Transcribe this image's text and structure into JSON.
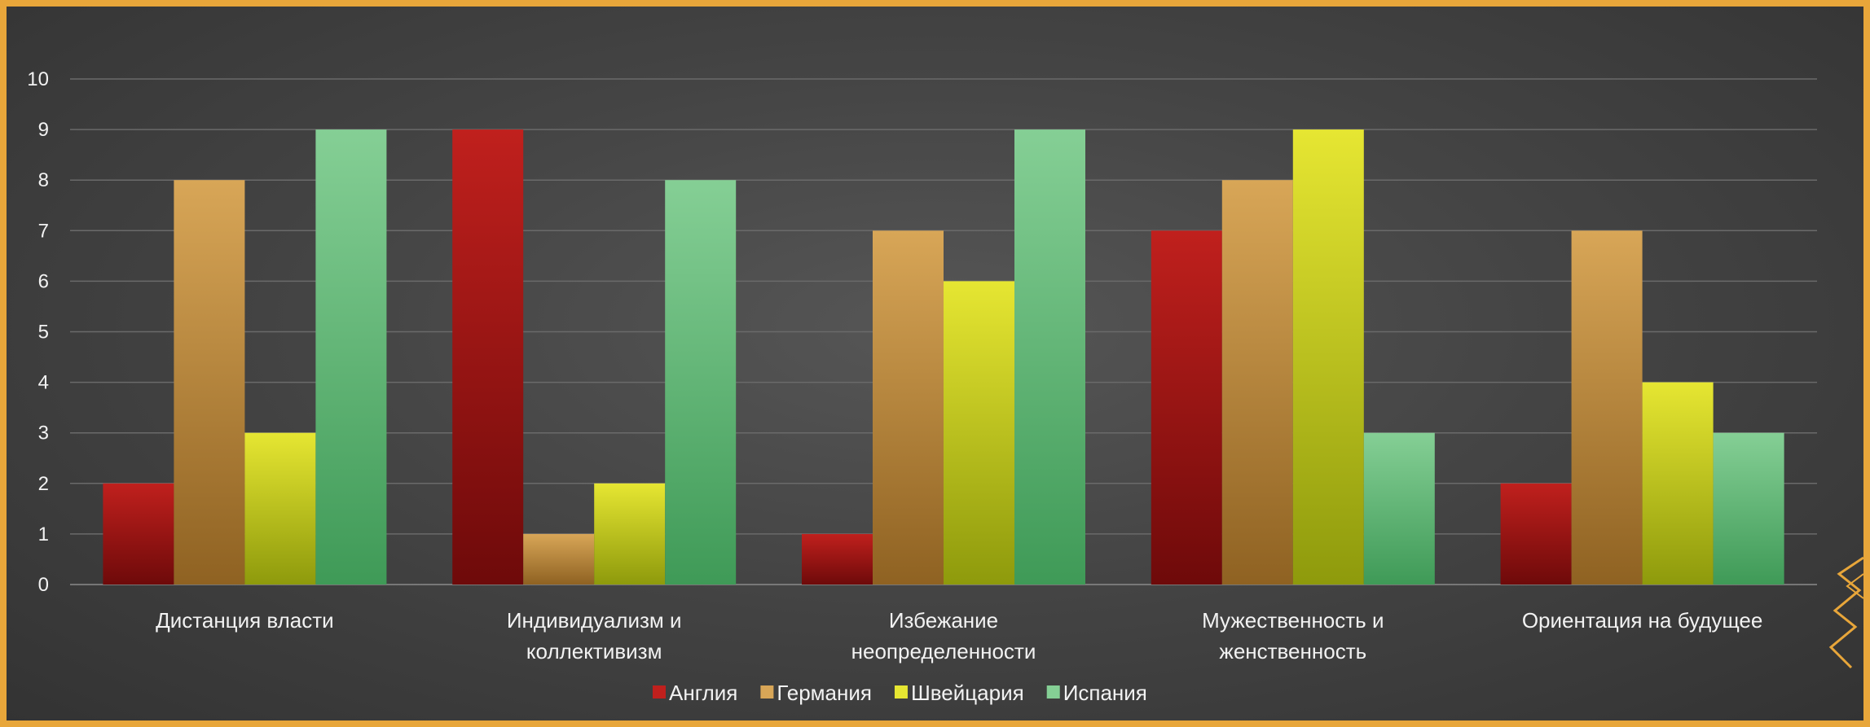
{
  "chart_data": {
    "type": "bar",
    "categories": [
      [
        "Дистанция власти"
      ],
      [
        "Индивидуализм и",
        "коллективизм"
      ],
      [
        "Избежание",
        "неопределенности"
      ],
      [
        "Мужественность и",
        "женственность"
      ],
      [
        "Ориентация на будущее"
      ]
    ],
    "series": [
      {
        "name": "Англия",
        "values": [
          2,
          9,
          1,
          7,
          2
        ],
        "color": "#c0201d",
        "color_dark": "#6e0a0a"
      },
      {
        "name": "Германия",
        "values": [
          8,
          1,
          7,
          8,
          7
        ],
        "color": "#d8a657",
        "color_dark": "#8f6222"
      },
      {
        "name": "Швейцария",
        "values": [
          3,
          2,
          6,
          9,
          4
        ],
        "color": "#e6e632",
        "color_dark": "#8e9a0c"
      },
      {
        "name": "Испания",
        "values": [
          9,
          8,
          9,
          3,
          3
        ],
        "color": "#85cf95",
        "color_dark": "#3f9a57"
      }
    ],
    "yticks": [
      0,
      1,
      2,
      3,
      4,
      5,
      6,
      7,
      8,
      9,
      10
    ],
    "ylim": [
      0,
      10
    ],
    "grid": true,
    "legend_position": "bottom"
  }
}
